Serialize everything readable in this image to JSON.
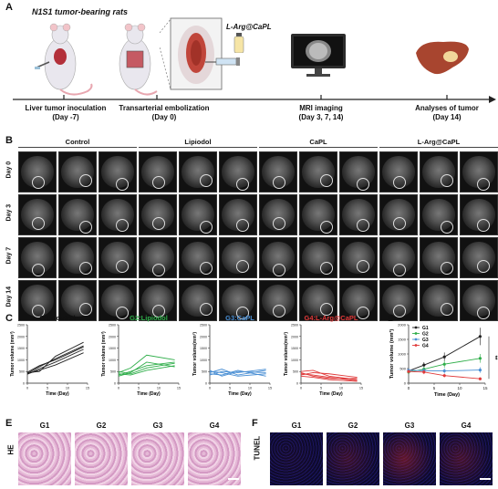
{
  "panelA": {
    "letter": "A",
    "title": "N1S1 tumor-bearing rats",
    "drug_label": "L-Arg@CaPL",
    "steps": [
      {
        "line1": "Liver tumor inoculation",
        "line2": "(Day -7)"
      },
      {
        "line1": "Transarterial embolization",
        "line2": "(Day 0)"
      },
      {
        "line1": "MRI imaging",
        "line2": "(Day 3, 7, 14)"
      },
      {
        "line1": "Analyses of tumor",
        "line2": "(Day 14)"
      }
    ]
  },
  "panelB": {
    "letter": "B",
    "conditions": [
      "Control",
      "Lipiodol",
      "CaPL",
      "L-Arg@CaPL"
    ],
    "days": [
      "Day 0",
      "Day 3",
      "Day 7",
      "Day 14"
    ]
  },
  "panelC": {
    "letter": "C",
    "ylabel": "Tumor volume (mm³)",
    "xlabel": "Time (Day)"
  },
  "panelD": {
    "letter": "D",
    "ylabel": "Tumor volume (mm³)",
    "xlabel": "Time (Day)",
    "significance": "**"
  },
  "panelE": {
    "letter": "E",
    "stain": "HE",
    "groups": [
      "G1",
      "G2",
      "G3",
      "G4"
    ]
  },
  "panelF": {
    "letter": "F",
    "stain": "TUNEL",
    "groups": [
      "G1",
      "G2",
      "G3",
      "G4"
    ]
  },
  "colors": {
    "G1": "#222222",
    "G2": "#2fae4a",
    "G3": "#4a8fd4",
    "G4": "#e03a3a"
  },
  "chart_data": [
    {
      "type": "line",
      "title": "G1:Control",
      "xlabel": "Time (Day)",
      "ylabel": "Tumor volume (mm³)",
      "xticks": [
        "0",
        "5",
        "10",
        "15"
      ],
      "yticks": [
        "0",
        "500",
        "1000",
        "1500",
        "2000",
        "2500"
      ],
      "xlim": [
        0,
        15
      ],
      "ylim": [
        0,
        2500
      ],
      "series": [
        {
          "x": [
            0,
            3,
            7,
            14
          ],
          "values": [
            420,
            700,
            1050,
            1600
          ]
        },
        {
          "x": [
            0,
            3,
            7,
            14
          ],
          "values": [
            380,
            620,
            900,
            1450
          ]
        },
        {
          "x": [
            0,
            3,
            7,
            14
          ],
          "values": [
            450,
            500,
            1150,
            1750
          ]
        },
        {
          "x": [
            0,
            3,
            7,
            14
          ],
          "values": [
            400,
            560,
            780,
            1300
          ]
        },
        {
          "x": [
            0,
            3,
            7,
            14
          ],
          "values": [
            470,
            750,
            1000,
            1550
          ]
        }
      ]
    },
    {
      "type": "line",
      "title": "G2:Lipiodol",
      "xlabel": "Time (Day)",
      "ylabel": "Tumor volume (mm³)",
      "xticks": [
        "0",
        "5",
        "10",
        "15"
      ],
      "yticks": [
        "0",
        "500",
        "1000",
        "1500",
        "2000",
        "2500"
      ],
      "xlim": [
        0,
        15
      ],
      "ylim": [
        0,
        2500
      ],
      "series": [
        {
          "x": [
            0,
            3,
            7,
            14
          ],
          "values": [
            450,
            650,
            1200,
            1000
          ]
        },
        {
          "x": [
            0,
            3,
            7,
            14
          ],
          "values": [
            350,
            500,
            750,
            900
          ]
        },
        {
          "x": [
            0,
            3,
            7,
            14
          ],
          "values": [
            500,
            400,
            650,
            850
          ]
        },
        {
          "x": [
            0,
            3,
            7,
            14
          ],
          "values": [
            300,
            450,
            900,
            700
          ]
        },
        {
          "x": [
            0,
            3,
            7,
            14
          ],
          "values": [
            400,
            350,
            550,
            750
          ]
        }
      ]
    },
    {
      "type": "line",
      "title": "G3:CaPL",
      "xlabel": "Time (Day)",
      "ylabel": "Tumor volume(mm³)",
      "xticks": [
        "0",
        "5",
        "10",
        "15"
      ],
      "yticks": [
        "0",
        "500",
        "1000",
        "1500",
        "2000",
        "2500"
      ],
      "xlim": [
        0,
        15
      ],
      "ylim": [
        0,
        2500
      ],
      "series": [
        {
          "x": [
            0,
            3,
            7,
            14
          ],
          "values": [
            450,
            600,
            350,
            550
          ]
        },
        {
          "x": [
            0,
            3,
            7,
            14
          ],
          "values": [
            400,
            350,
            550,
            300
          ]
        },
        {
          "x": [
            0,
            3,
            7,
            14
          ],
          "values": [
            500,
            450,
            300,
            400
          ]
        },
        {
          "x": [
            0,
            3,
            7,
            14
          ],
          "values": [
            350,
            500,
            450,
            600
          ]
        },
        {
          "x": [
            0,
            3,
            7,
            14
          ],
          "values": [
            550,
            300,
            500,
            450
          ]
        }
      ]
    },
    {
      "type": "line",
      "title": "G4:L-Arg@CaPL",
      "xlabel": "Time (Day)",
      "ylabel": "Tumor volume(mm³)",
      "xticks": [
        "0",
        "5",
        "10",
        "15"
      ],
      "yticks": [
        "0",
        "500",
        "1000",
        "1500",
        "2000",
        "2500"
      ],
      "xlim": [
        0,
        15
      ],
      "ylim": [
        0,
        2500
      ],
      "series": [
        {
          "x": [
            0,
            3,
            7,
            14
          ],
          "values": [
            500,
            550,
            300,
            150
          ]
        },
        {
          "x": [
            0,
            3,
            7,
            14
          ],
          "values": [
            400,
            350,
            250,
            100
          ]
        },
        {
          "x": [
            0,
            3,
            7,
            14
          ],
          "values": [
            450,
            300,
            200,
            200
          ]
        },
        {
          "x": [
            0,
            3,
            7,
            14
          ],
          "values": [
            350,
            450,
            400,
            250
          ]
        },
        {
          "x": [
            0,
            3,
            7,
            14
          ],
          "values": [
            300,
            250,
            150,
            80
          ]
        }
      ]
    },
    {
      "type": "line",
      "title": "",
      "xlabel": "Time (Day)",
      "ylabel": "Tumor volume (mm³)",
      "xticks": [
        "0",
        "5",
        "10",
        "15"
      ],
      "yticks": [
        "0",
        "500",
        "1000",
        "1500",
        "2000"
      ],
      "xlim": [
        0,
        15
      ],
      "ylim": [
        0,
        2000
      ],
      "legend": "top-left",
      "series": [
        {
          "name": "G1",
          "x": [
            0,
            3,
            7,
            14
          ],
          "values": [
            420,
            620,
            900,
            1600
          ],
          "err": [
            60,
            100,
            150,
            300
          ]
        },
        {
          "name": "G2",
          "x": [
            0,
            3,
            7,
            14
          ],
          "values": [
            380,
            480,
            650,
            850
          ],
          "err": [
            50,
            80,
            120,
            150
          ]
        },
        {
          "name": "G3",
          "x": [
            0,
            3,
            7,
            14
          ],
          "values": [
            440,
            430,
            420,
            450
          ],
          "err": [
            60,
            80,
            90,
            100
          ]
        },
        {
          "name": "G4",
          "x": [
            0,
            3,
            7,
            14
          ],
          "values": [
            400,
            380,
            260,
            150
          ],
          "err": [
            50,
            70,
            60,
            50
          ]
        }
      ]
    }
  ]
}
